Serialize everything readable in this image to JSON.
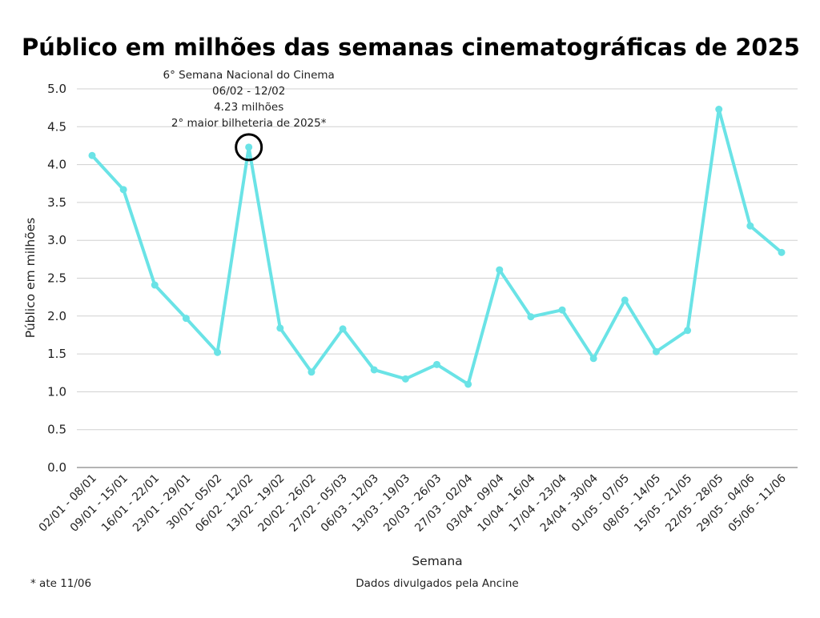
{
  "chart_data": {
    "type": "line",
    "title": "Público em milhões das semanas cinematográficas de 2025",
    "xlabel": "Semana",
    "ylabel": "Público em milhões",
    "ylim": [
      0,
      5.0
    ],
    "yticks": [
      "0.0",
      "0.5",
      "1.0",
      "1.5",
      "2.0",
      "2.5",
      "3.0",
      "3.5",
      "4.0",
      "4.5",
      "5.0"
    ],
    "grid": true,
    "line_color": "#6ae3e6",
    "categories": [
      "02/01 - 08/01",
      "09/01 - 15/01",
      "16/01 - 22/01",
      "23/01 - 29/01",
      "30/01- 05/02",
      "06/02 - 12/02",
      "13/02 - 19/02",
      "20/02 - 26/02",
      "27/02 - 05/03",
      "06/03 - 12/03",
      "13/03 - 19/03",
      "20/03 - 26/03",
      "27/03 - 02/04",
      "03/04 - 09/04",
      "10/04 - 16/04",
      "17/04 - 23/04",
      "24/04 - 30/04",
      "01/05 - 07/05",
      "08/05 - 14/05",
      "15/05 - 21/05",
      "22/05 - 28/05",
      "29/05 - 04/06",
      "05/06 - 11/06"
    ],
    "values": [
      4.12,
      3.67,
      2.41,
      1.97,
      1.52,
      4.23,
      1.84,
      1.26,
      1.83,
      1.29,
      1.17,
      1.36,
      1.1,
      2.61,
      1.99,
      2.08,
      1.44,
      2.21,
      1.53,
      1.81,
      4.73,
      3.19,
      2.84
    ],
    "annotation": {
      "index": 5,
      "lines": [
        "6° Semana Nacional do Cinema",
        "06/02 - 12/02",
        "4.23 milhões",
        "2° maior bilheteria de 2025*"
      ]
    },
    "footnote_left": "* ate 11/06",
    "footnote_center": "Dados divulgados pela Ancine"
  }
}
